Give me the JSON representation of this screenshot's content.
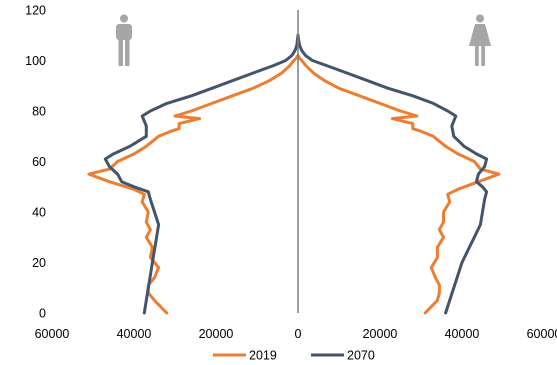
{
  "chart_data": {
    "type": "line",
    "title": "",
    "xlabel": "",
    "ylabel": "",
    "xlim": [
      -60000,
      60000
    ],
    "ylim": [
      0,
      120
    ],
    "x_ticks": [
      -60000,
      -40000,
      -20000,
      0,
      20000,
      40000,
      60000
    ],
    "x_tick_labels": [
      "60000",
      "40000",
      "20000",
      "0",
      "20000",
      "40000",
      "60000"
    ],
    "y_ticks": [
      0,
      20,
      40,
      60,
      80,
      100,
      120
    ],
    "y_tick_labels": [
      "0",
      "20",
      "40",
      "60",
      "80",
      "100",
      "120"
    ],
    "grid": false,
    "legend_position": "bottom",
    "center_line": true,
    "icons": {
      "left": "male-icon",
      "right": "female-icon"
    },
    "series": [
      {
        "name": "2019",
        "color": "#ED7D31",
        "side": "left",
        "y": [
          0,
          5,
          8,
          11,
          14,
          18,
          22,
          26,
          30,
          33,
          36,
          40,
          44,
          47,
          49,
          52,
          55,
          57,
          60,
          63,
          66,
          70,
          72,
          73,
          75,
          77,
          78,
          80,
          83,
          86,
          89,
          92,
          95,
          98,
          100,
          101,
          102
        ],
        "values": [
          32000,
          35000,
          36500,
          36500,
          35000,
          34000,
          36000,
          35500,
          37000,
          36000,
          37000,
          36500,
          38000,
          37500,
          40000,
          46000,
          51000,
          46000,
          44000,
          40000,
          37000,
          34000,
          31000,
          29000,
          29000,
          24000,
          30000,
          26000,
          21000,
          16000,
          11000,
          7000,
          4000,
          2000,
          1000,
          400,
          0
        ]
      },
      {
        "name": "2070",
        "color": "#44546A",
        "side": "left",
        "y": [
          0,
          5,
          10,
          15,
          20,
          25,
          30,
          35,
          40,
          45,
          48,
          50,
          52,
          55,
          58,
          61,
          63,
          66,
          70,
          74,
          78,
          80,
          83,
          86,
          89,
          92,
          95,
          98,
          100,
          102,
          104,
          106,
          108,
          110
        ],
        "values": [
          37500,
          37000,
          36500,
          36000,
          35500,
          35000,
          34500,
          34000,
          35000,
          36000,
          36500,
          40000,
          43000,
          44000,
          46000,
          47000,
          45000,
          41000,
          37000,
          37000,
          38000,
          36000,
          32000,
          26000,
          21000,
          16000,
          11000,
          6000,
          3000,
          1500,
          700,
          300,
          150,
          0
        ]
      },
      {
        "name": "2019",
        "color": "#ED7D31",
        "side": "right",
        "y": [
          0,
          5,
          8,
          11,
          14,
          18,
          22,
          26,
          30,
          33,
          36,
          40,
          44,
          47,
          49,
          52,
          55,
          57,
          60,
          63,
          66,
          70,
          72,
          73,
          75,
          77,
          78,
          80,
          83,
          86,
          89,
          92,
          95,
          98,
          100,
          101,
          102
        ],
        "values": [
          31000,
          34000,
          34500,
          34500,
          33500,
          32500,
          34000,
          34000,
          35500,
          34500,
          35500,
          35500,
          37000,
          36500,
          39000,
          44000,
          49000,
          44500,
          43000,
          39000,
          36000,
          33000,
          30000,
          28000,
          28000,
          23000,
          29000,
          25000,
          20000,
          15000,
          10000,
          6500,
          3800,
          1900,
          900,
          350,
          0
        ]
      },
      {
        "name": "2070",
        "color": "#44546A",
        "side": "right",
        "y": [
          0,
          5,
          10,
          15,
          20,
          25,
          30,
          35,
          40,
          45,
          48,
          50,
          52,
          55,
          58,
          61,
          63,
          66,
          70,
          74,
          78,
          80,
          83,
          86,
          89,
          92,
          95,
          98,
          100,
          102,
          104,
          106,
          108,
          110
        ],
        "values": [
          36000,
          37000,
          38000,
          39000,
          40000,
          41500,
          43000,
          44500,
          45000,
          45500,
          46000,
          45000,
          43500,
          44000,
          45500,
          46000,
          43500,
          40500,
          38000,
          37500,
          38500,
          36500,
          33000,
          28000,
          22000,
          17000,
          12000,
          7000,
          3500,
          1800,
          900,
          400,
          150,
          0
        ]
      }
    ]
  }
}
